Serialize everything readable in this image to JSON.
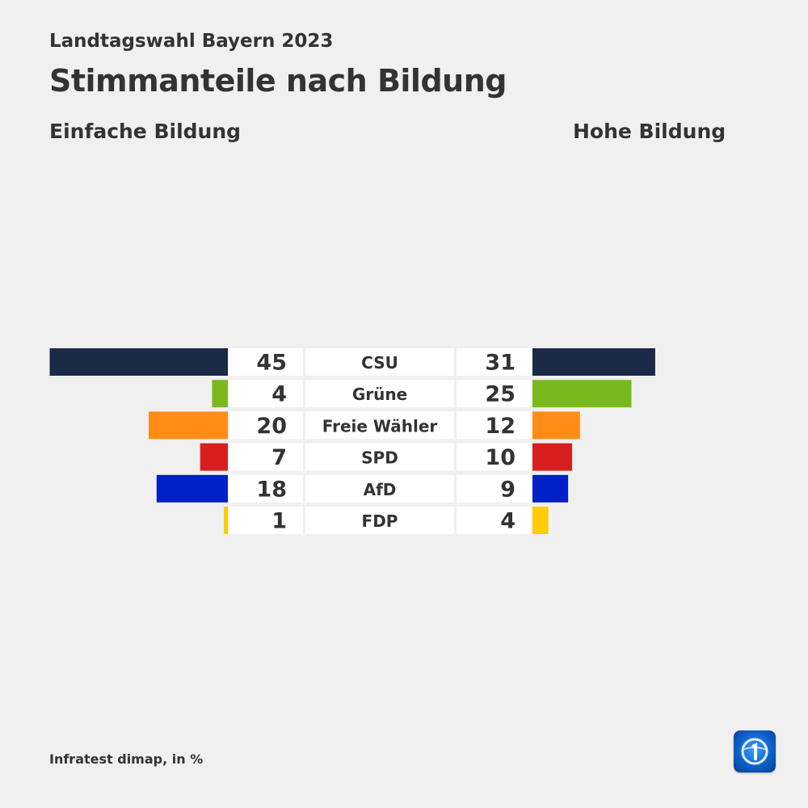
{
  "header": {
    "subtitle": "Landtagswahl Bayern 2023",
    "title": "Stimmanteile nach Bildung"
  },
  "footer": {
    "source": "Infratest dimap, in %"
  },
  "logo": {
    "icon": "ard-das-erste-logo-icon"
  },
  "chart_data": {
    "type": "bar",
    "title": "Stimmanteile nach Bildung",
    "subtitle": "Landtagswahl Bayern 2023",
    "unit": "%",
    "categories": [
      "CSU",
      "Grüne",
      "Freie Wähler",
      "SPD",
      "AfD",
      "FDP"
    ],
    "colors": [
      "#1b2a47",
      "#7ab91d",
      "#ff8c17",
      "#d71f1f",
      "#0021c7",
      "#ffcc00"
    ],
    "series": [
      {
        "name": "Einfache Bildung",
        "values": [
          45,
          4,
          20,
          7,
          18,
          1
        ]
      },
      {
        "name": "Hohe Bildung",
        "values": [
          31,
          25,
          12,
          10,
          9,
          4
        ]
      }
    ],
    "layout": "butterfly"
  }
}
